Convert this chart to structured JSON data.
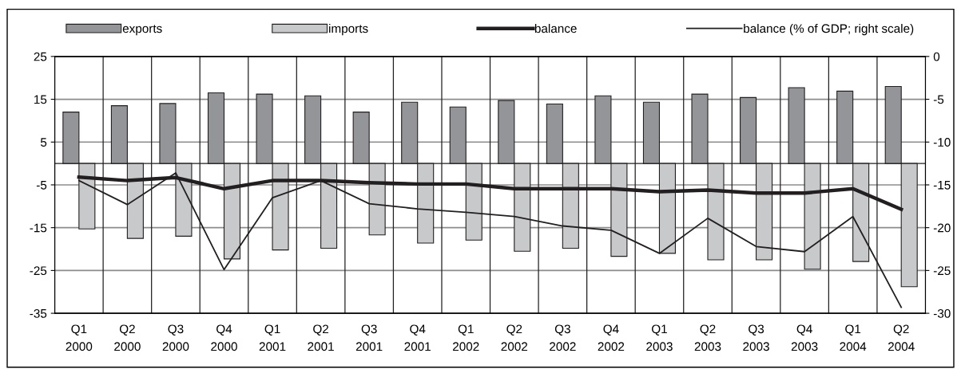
{
  "chart_data": {
    "type": "bar",
    "categories": [
      "Q1\n2000",
      "Q2\n2000",
      "Q3\n2000",
      "Q4\n2000",
      "Q1\n2001",
      "Q2\n2001",
      "Q3\n2001",
      "Q4\n2001",
      "Q1\n2002",
      "Q2\n2002",
      "Q3\n2002",
      "Q4\n2002",
      "Q1\n2003",
      "Q2\n2003",
      "Q3\n2003",
      "Q4\n2003",
      "Q1\n2004",
      "Q2\n2004"
    ],
    "series": [
      {
        "name": "exports",
        "color": "#939598",
        "values": [
          12,
          13.5,
          14,
          16.5,
          16.2,
          15.8,
          12,
          14.3,
          13.2,
          14.7,
          13.9,
          15.8,
          14.3,
          16.2,
          15.4,
          17.7,
          16.9,
          18
        ]
      },
      {
        "name": "imports",
        "color": "#c8c9cb",
        "values": [
          -15.3,
          -17.5,
          -17,
          -22.3,
          -20.2,
          -19.8,
          -16.7,
          -18.6,
          -17.9,
          -20.5,
          -19.8,
          -21.7,
          -21,
          -22.5,
          -22.5,
          -24.7,
          -22.9,
          -28.8
        ]
      },
      {
        "name": "balance",
        "type": "line",
        "color": "#231f20",
        "values": [
          -3.2,
          -4,
          -3.3,
          -5.9,
          -4,
          -4,
          -4.5,
          -4.8,
          -4.8,
          -5.9,
          -5.9,
          -5.9,
          -6.6,
          -6.2,
          -6.9,
          -6.9,
          -5.9,
          -10.7
        ]
      },
      {
        "name": "balance (% of GDP; right scale)",
        "type": "line",
        "axis": "y2",
        "color": "#231f20",
        "values": [
          -14.5,
          -17.3,
          -13.6,
          -24.9,
          -16.5,
          -14.5,
          -17.2,
          -17.8,
          -18.2,
          -18.7,
          -19.8,
          -20.3,
          -23,
          -18.9,
          -22.2,
          -22.8,
          -18.7,
          -29.3
        ]
      }
    ],
    "ylim": [
      -35,
      25
    ],
    "yticks": [
      -35,
      -25,
      -15,
      -5,
      5,
      15,
      25
    ],
    "y2lim": [
      -30,
      0
    ],
    "y2ticks": [
      -30,
      -25,
      -20,
      -15,
      -10,
      -5,
      0
    ],
    "grid": "y",
    "legend": "top",
    "marker": "none",
    "line_style": "solid"
  }
}
